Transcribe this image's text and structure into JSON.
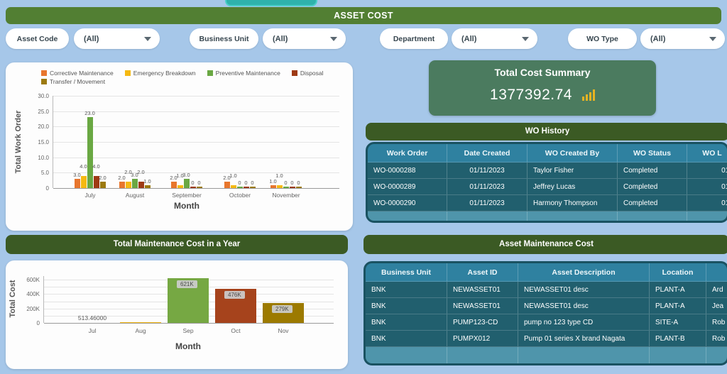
{
  "header": {
    "title": "ASSET COST"
  },
  "filters": [
    {
      "label": "Asset Code",
      "value": "(All)"
    },
    {
      "label": "Business Unit",
      "value": "(All)"
    },
    {
      "label": "Department",
      "value": "(All)"
    },
    {
      "label": "WO Type",
      "value": "(All)"
    }
  ],
  "summary": {
    "title": "Total Cost Summary",
    "value": "1377392.74",
    "icon": "bar-chart-icon"
  },
  "chart_data": [
    {
      "type": "bar",
      "title": "",
      "xlabel": "Month",
      "ylabel": "Total Work Order",
      "categories": [
        "July",
        "August",
        "September",
        "October",
        "November"
      ],
      "series": [
        {
          "name": "Corrective Maintenance",
          "color": "#e8762d",
          "values": [
            3,
            2,
            2,
            2,
            1
          ]
        },
        {
          "name": "Emergency Breakdown",
          "color": "#f5b912",
          "values": [
            4,
            2,
            1,
            1,
            1
          ]
        },
        {
          "name": "Preventive Maintenance",
          "color": "#6aa843",
          "values": [
            23,
            3,
            3,
            0,
            0
          ]
        },
        {
          "name": "Disposal",
          "color": "#9e3a14",
          "values": [
            4,
            2,
            0,
            0,
            0
          ]
        },
        {
          "name": "Transfer / Movement",
          "color": "#9c7a10",
          "values": [
            2,
            1,
            0,
            0,
            0
          ]
        }
      ],
      "ylim": [
        0,
        30
      ],
      "yticks": [
        "0",
        "5.0",
        "10.0",
        "15.0",
        "20.0",
        "25.0",
        "30.0"
      ],
      "grid": true,
      "legend_position": "top"
    },
    {
      "type": "bar",
      "title": "Total Maintenance Cost in a Year",
      "xlabel": "Month",
      "ylabel": "Total Cost",
      "categories": [
        "Jul",
        "Aug",
        "Sep",
        "Oct",
        "Nov"
      ],
      "values": [
        513.46,
        8000,
        621000,
        476000,
        279000
      ],
      "labels": [
        "513.46000",
        "",
        "621K",
        "476K",
        "279K"
      ],
      "label_boxed": [
        false,
        false,
        true,
        true,
        true
      ],
      "colors": [
        "#e8762d",
        "#f5b912",
        "#76a843",
        "#a6431c",
        "#9c7a00"
      ],
      "ylim": [
        0,
        650000
      ],
      "yticks": [
        {
          "v": 0,
          "label": "0"
        },
        {
          "v": 200000,
          "label": "200K"
        },
        {
          "v": 400000,
          "label": "400K"
        },
        {
          "v": 600000,
          "label": "600K"
        }
      ],
      "grid": true
    }
  ],
  "wo_history": {
    "title": "WO History",
    "columns": [
      "Work Order",
      "Date Created",
      "WO Created By",
      "WO Status",
      "WO L"
    ],
    "rows": [
      [
        "WO-0000288",
        "01/11/2023",
        "Taylor Fisher",
        "Completed",
        "01/"
      ],
      [
        "WO-0000289",
        "01/11/2023",
        "Jeffrey Lucas",
        "Completed",
        "01/"
      ],
      [
        "WO-0000290",
        "01/11/2023",
        "Harmony Thompson",
        "Completed",
        "01/"
      ]
    ]
  },
  "asset_table": {
    "title": "Asset Maintenance Cost",
    "columns": [
      "Business Unit",
      "Asset ID",
      "Asset Description",
      "Location",
      ""
    ],
    "rows": [
      [
        "BNK",
        "NEWASSET01",
        "NEWASSET01 desc",
        "PLANT-A",
        "Ard"
      ],
      [
        "BNK",
        "NEWASSET01",
        "NEWASSET01 desc",
        "PLANT-A",
        "Jea"
      ],
      [
        "BNK",
        "PUMP123-CD",
        "pump no 123 type CD",
        "SITE-A",
        "Rob"
      ],
      [
        "BNK",
        "PUMPX012",
        "Pump 01 series X brand Nagata",
        "PLANT-B",
        "Rob"
      ]
    ]
  }
}
